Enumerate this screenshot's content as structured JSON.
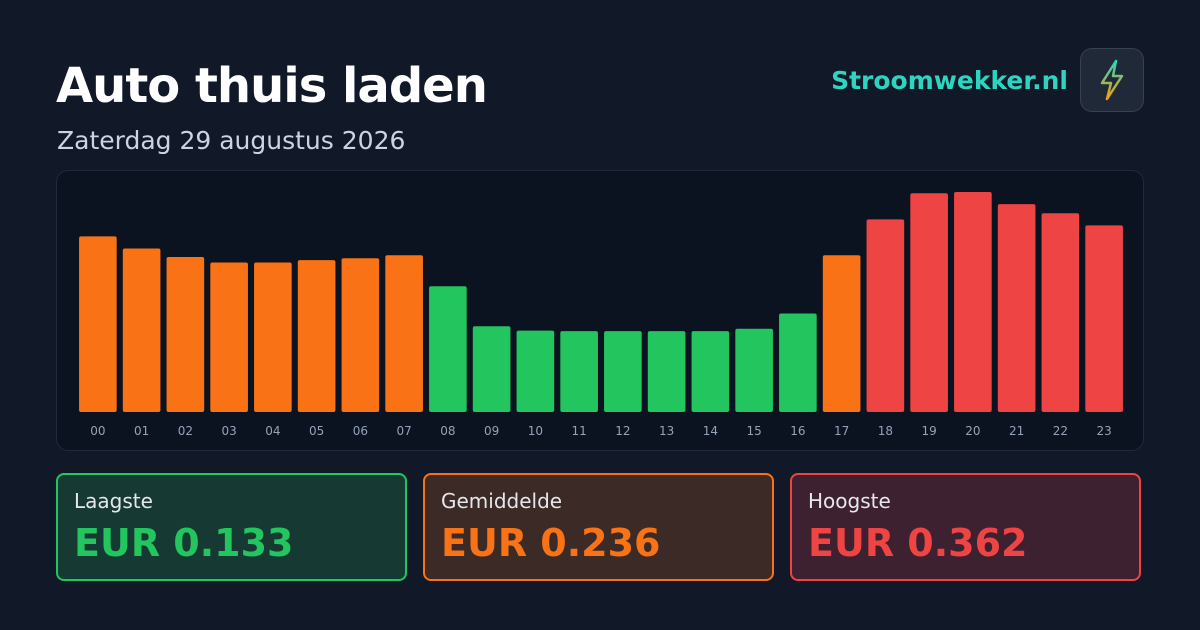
{
  "header": {
    "title": "Auto thuis laden",
    "subtitle": "Zaterdag 29 augustus 2026",
    "brand": "Stroomwekker.nl"
  },
  "chart_data": {
    "type": "bar",
    "categories": [
      "00",
      "01",
      "02",
      "03",
      "04",
      "05",
      "06",
      "07",
      "08",
      "09",
      "10",
      "11",
      "12",
      "13",
      "14",
      "15",
      "16",
      "17",
      "18",
      "19",
      "20",
      "21",
      "22",
      "23"
    ],
    "values": [
      0.289,
      0.269,
      0.255,
      0.246,
      0.246,
      0.25,
      0.253,
      0.258,
      0.207,
      0.141,
      0.134,
      0.133,
      0.133,
      0.133,
      0.133,
      0.137,
      0.162,
      0.258,
      0.317,
      0.36,
      0.362,
      0.342,
      0.327,
      0.307
    ],
    "colors": [
      "#f97316",
      "#f97316",
      "#f97316",
      "#f97316",
      "#f97316",
      "#f97316",
      "#f97316",
      "#f97316",
      "#22c55e",
      "#22c55e",
      "#22c55e",
      "#22c55e",
      "#22c55e",
      "#22c55e",
      "#22c55e",
      "#22c55e",
      "#22c55e",
      "#f97316",
      "#ef4444",
      "#ef4444",
      "#ef4444",
      "#ef4444",
      "#ef4444",
      "#ef4444"
    ]
  },
  "stats": [
    {
      "label": "Laagste",
      "value": "EUR 0.133",
      "color": "#22c55e"
    },
    {
      "label": "Gemiddelde",
      "value": "EUR 0.236",
      "color": "#f97316"
    },
    {
      "label": "Hoogste",
      "value": "EUR 0.362",
      "color": "#ef4444"
    }
  ]
}
